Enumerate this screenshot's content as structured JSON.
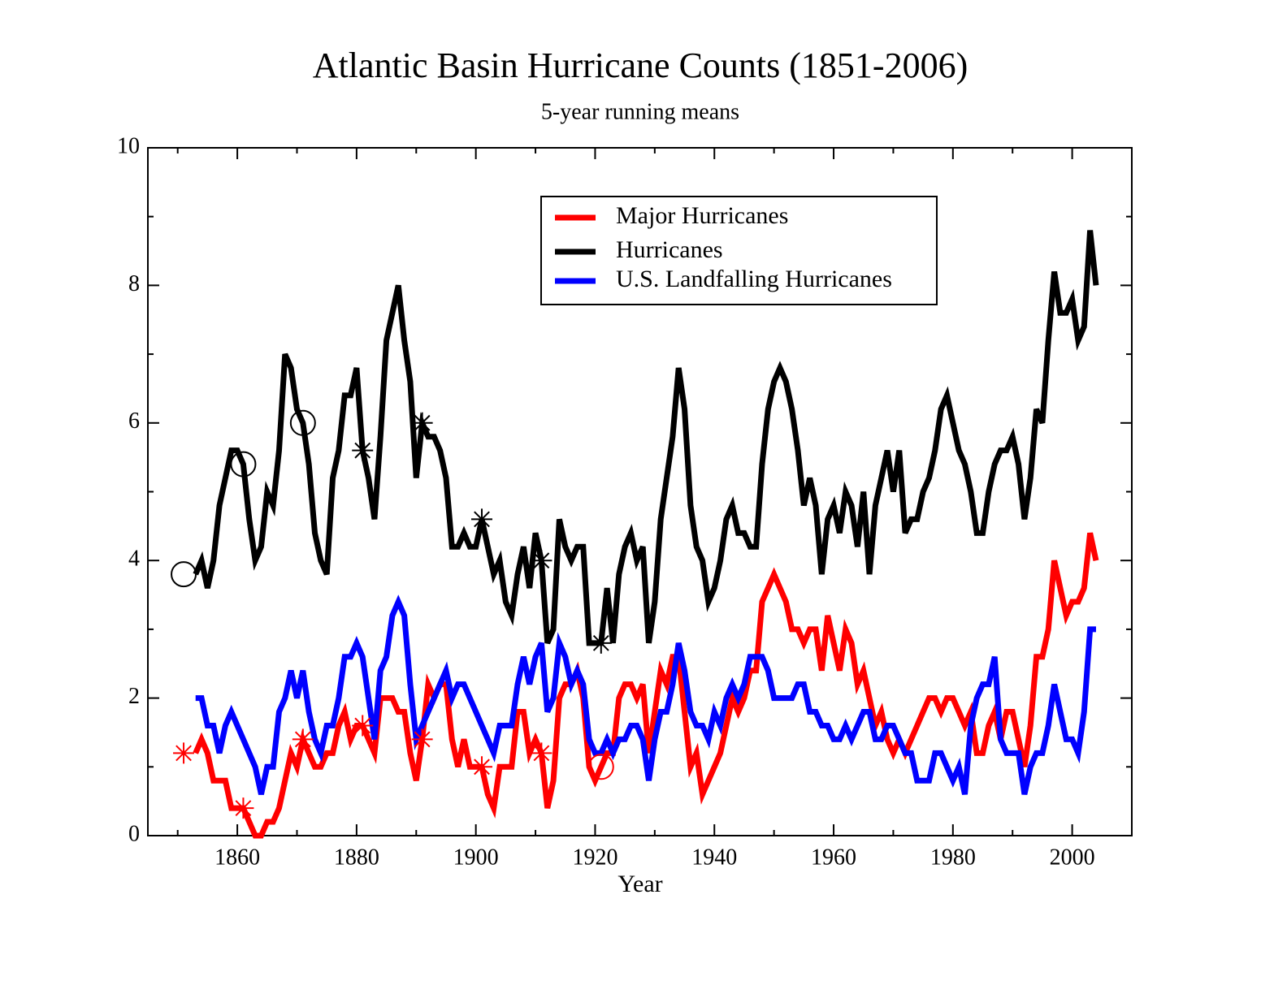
{
  "chart_data": {
    "type": "line",
    "title": "Atlantic Basin Hurricane Counts (1851-2006)",
    "subtitle": "5-year running means",
    "xlabel": "Year",
    "xlim": [
      1845,
      2010
    ],
    "xticks": [
      1860,
      1880,
      1900,
      1920,
      1940,
      1960,
      1980,
      2000
    ],
    "xminorticks": [
      1850,
      1870,
      1890,
      1910,
      1930,
      1950,
      1970,
      1990,
      2010
    ],
    "ylim": [
      0,
      10
    ],
    "yticks": [
      0,
      2,
      4,
      6,
      8,
      10
    ],
    "yminorticks": [
      1,
      3,
      5,
      7,
      9
    ],
    "x": [
      1853,
      1854,
      1855,
      1856,
      1857,
      1858,
      1859,
      1860,
      1861,
      1862,
      1863,
      1864,
      1865,
      1866,
      1867,
      1868,
      1869,
      1870,
      1871,
      1872,
      1873,
      1874,
      1875,
      1876,
      1877,
      1878,
      1879,
      1880,
      1881,
      1882,
      1883,
      1884,
      1885,
      1886,
      1887,
      1888,
      1889,
      1890,
      1891,
      1892,
      1893,
      1894,
      1895,
      1896,
      1897,
      1898,
      1899,
      1900,
      1901,
      1902,
      1903,
      1904,
      1905,
      1906,
      1907,
      1908,
      1909,
      1910,
      1911,
      1912,
      1913,
      1914,
      1915,
      1916,
      1917,
      1918,
      1919,
      1920,
      1921,
      1922,
      1923,
      1924,
      1925,
      1926,
      1927,
      1928,
      1929,
      1930,
      1931,
      1932,
      1933,
      1934,
      1935,
      1936,
      1937,
      1938,
      1939,
      1940,
      1941,
      1942,
      1943,
      1944,
      1945,
      1946,
      1947,
      1948,
      1949,
      1950,
      1951,
      1952,
      1953,
      1954,
      1955,
      1956,
      1957,
      1958,
      1959,
      1960,
      1961,
      1962,
      1963,
      1964,
      1965,
      1966,
      1967,
      1968,
      1969,
      1970,
      1971,
      1972,
      1973,
      1974,
      1975,
      1976,
      1977,
      1978,
      1979,
      1980,
      1981,
      1982,
      1983,
      1984,
      1985,
      1986,
      1987,
      1988,
      1989,
      1990,
      1991,
      1992,
      1993,
      1994,
      1995,
      1996,
      1997,
      1998,
      1999,
      2000,
      2001,
      2002,
      2003,
      2004
    ],
    "series": [
      {
        "name": "Major Hurricanes",
        "color": "#ff0000",
        "values": [
          1.2,
          1.4,
          1.2,
          0.8,
          0.8,
          0.8,
          0.4,
          0.4,
          0.4,
          0.2,
          0.0,
          0.0,
          0.2,
          0.2,
          0.4,
          0.8,
          1.2,
          1.0,
          1.4,
          1.2,
          1.0,
          1.0,
          1.2,
          1.2,
          1.6,
          1.8,
          1.4,
          1.6,
          1.6,
          1.4,
          1.2,
          2.0,
          2.0,
          2.0,
          1.8,
          1.8,
          1.2,
          0.8,
          1.4,
          2.2,
          2.0,
          2.2,
          2.2,
          1.4,
          1.0,
          1.4,
          1.0,
          1.0,
          1.0,
          0.6,
          0.4,
          1.0,
          1.0,
          1.0,
          1.8,
          1.8,
          1.2,
          1.4,
          1.2,
          0.4,
          0.8,
          2.0,
          2.2,
          2.2,
          2.4,
          2.0,
          1.0,
          0.8,
          1.0,
          1.2,
          1.2,
          2.0,
          2.2,
          2.2,
          2.0,
          2.2,
          1.2,
          1.8,
          2.4,
          2.2,
          2.6,
          2.6,
          1.8,
          1.0,
          1.2,
          0.6,
          0.8,
          1.0,
          1.2,
          1.6,
          2.0,
          1.8,
          2.0,
          2.4,
          2.4,
          3.4,
          3.6,
          3.8,
          3.6,
          3.4,
          3.0,
          3.0,
          2.8,
          3.0,
          3.0,
          2.4,
          3.2,
          2.8,
          2.4,
          3.0,
          2.8,
          2.2,
          2.4,
          2.0,
          1.6,
          1.8,
          1.4,
          1.2,
          1.4,
          1.2,
          1.4,
          1.6,
          1.8,
          2.0,
          2.0,
          1.8,
          2.0,
          2.0,
          1.8,
          1.6,
          1.8,
          1.2,
          1.2,
          1.6,
          1.8,
          1.4,
          1.8,
          1.8,
          1.4,
          1.0,
          1.6,
          2.6,
          2.6,
          3.0,
          4.0,
          3.6,
          3.2,
          3.4,
          3.4,
          3.6,
          4.4,
          4.0
        ]
      },
      {
        "name": "Hurricanes",
        "color": "#000000",
        "values": [
          3.8,
          4.0,
          3.6,
          4.0,
          4.8,
          5.2,
          5.6,
          5.6,
          5.4,
          4.6,
          4.0,
          4.2,
          5.0,
          4.8,
          5.6,
          7.0,
          6.8,
          6.2,
          6.0,
          5.4,
          4.4,
          4.0,
          3.8,
          5.2,
          5.6,
          6.4,
          6.4,
          6.8,
          5.6,
          5.2,
          4.6,
          5.8,
          7.2,
          7.6,
          8.0,
          7.2,
          6.6,
          5.2,
          6.0,
          5.8,
          5.8,
          5.6,
          5.2,
          4.2,
          4.2,
          4.4,
          4.2,
          4.2,
          4.6,
          4.2,
          3.8,
          4.0,
          3.4,
          3.2,
          3.8,
          4.2,
          3.6,
          4.4,
          4.0,
          2.8,
          3.0,
          4.6,
          4.2,
          4.0,
          4.2,
          4.2,
          2.8,
          2.8,
          2.8,
          3.6,
          2.8,
          3.8,
          4.2,
          4.4,
          4.0,
          4.2,
          2.8,
          3.4,
          4.6,
          5.2,
          5.8,
          6.8,
          6.2,
          4.8,
          4.2,
          4.0,
          3.4,
          3.6,
          4.0,
          4.6,
          4.8,
          4.4,
          4.4,
          4.2,
          4.2,
          5.4,
          6.2,
          6.6,
          6.8,
          6.6,
          6.2,
          5.6,
          4.8,
          5.2,
          4.8,
          3.8,
          4.6,
          4.8,
          4.4,
          5.0,
          4.8,
          4.2,
          5.0,
          3.8,
          4.8,
          5.2,
          5.6,
          5.0,
          5.6,
          4.4,
          4.6,
          4.6,
          5.0,
          5.2,
          5.6,
          6.2,
          6.4,
          6.0,
          5.6,
          5.4,
          5.0,
          4.4,
          4.4,
          5.0,
          5.4,
          5.6,
          5.6,
          5.8,
          5.4,
          4.6,
          5.2,
          6.2,
          6.0,
          7.2,
          8.2,
          7.6,
          7.6,
          7.8,
          7.2,
          7.4,
          8.8,
          8.0
        ]
      },
      {
        "name": "U.S. Landfalling Hurricanes",
        "color": "#0000ff",
        "values": [
          2.0,
          2.0,
          1.6,
          1.6,
          1.2,
          1.6,
          1.8,
          1.6,
          1.4,
          1.2,
          1.0,
          0.6,
          1.0,
          1.0,
          1.8,
          2.0,
          2.4,
          2.0,
          2.4,
          1.8,
          1.4,
          1.2,
          1.6,
          1.6,
          2.0,
          2.6,
          2.6,
          2.8,
          2.6,
          2.0,
          1.4,
          2.4,
          2.6,
          3.2,
          3.4,
          3.2,
          2.2,
          1.4,
          1.6,
          1.8,
          2.0,
          2.2,
          2.4,
          2.0,
          2.2,
          2.2,
          2.0,
          1.8,
          1.6,
          1.4,
          1.2,
          1.6,
          1.6,
          1.6,
          2.2,
          2.6,
          2.2,
          2.6,
          2.8,
          1.8,
          2.0,
          2.8,
          2.6,
          2.2,
          2.4,
          2.2,
          1.4,
          1.2,
          1.2,
          1.4,
          1.2,
          1.4,
          1.4,
          1.6,
          1.6,
          1.4,
          0.8,
          1.4,
          1.8,
          1.8,
          2.2,
          2.8,
          2.4,
          1.8,
          1.6,
          1.6,
          1.4,
          1.8,
          1.6,
          2.0,
          2.2,
          2.0,
          2.2,
          2.6,
          2.6,
          2.6,
          2.4,
          2.0,
          2.0,
          2.0,
          2.0,
          2.2,
          2.2,
          1.8,
          1.8,
          1.6,
          1.6,
          1.4,
          1.4,
          1.6,
          1.4,
          1.6,
          1.8,
          1.8,
          1.4,
          1.4,
          1.6,
          1.6,
          1.4,
          1.2,
          1.2,
          0.8,
          0.8,
          0.8,
          1.2,
          1.2,
          1.0,
          0.8,
          1.0,
          0.6,
          1.6,
          2.0,
          2.2,
          2.2,
          2.6,
          1.4,
          1.2,
          1.2,
          1.2,
          0.6,
          1.0,
          1.2,
          1.2,
          1.6,
          2.2,
          1.8,
          1.4,
          1.4,
          1.2,
          1.8,
          3.0,
          3.0
        ]
      }
    ],
    "points": [
      {
        "x": 1851,
        "y": 3.8,
        "symbol": "circle",
        "color": "#000000"
      },
      {
        "x": 1861,
        "y": 5.4,
        "symbol": "circle",
        "color": "#000000"
      },
      {
        "x": 1871,
        "y": 6.0,
        "symbol": "circle",
        "color": "#000000"
      },
      {
        "x": 1881,
        "y": 5.6,
        "symbol": "star",
        "color": "#000000"
      },
      {
        "x": 1891,
        "y": 6.0,
        "symbol": "star",
        "color": "#000000"
      },
      {
        "x": 1901,
        "y": 4.6,
        "symbol": "star",
        "color": "#000000"
      },
      {
        "x": 1911,
        "y": 4.0,
        "symbol": "star",
        "color": "#000000"
      },
      {
        "x": 1921,
        "y": 2.8,
        "symbol": "star",
        "color": "#000000"
      },
      {
        "x": 1851,
        "y": 1.2,
        "symbol": "star",
        "color": "#ff0000"
      },
      {
        "x": 1861,
        "y": 0.4,
        "symbol": "star",
        "color": "#ff0000"
      },
      {
        "x": 1871,
        "y": 1.4,
        "symbol": "star",
        "color": "#ff0000"
      },
      {
        "x": 1881,
        "y": 1.6,
        "symbol": "star",
        "color": "#ff0000"
      },
      {
        "x": 1891,
        "y": 1.4,
        "symbol": "star",
        "color": "#ff0000"
      },
      {
        "x": 1901,
        "y": 1.0,
        "symbol": "star",
        "color": "#ff0000"
      },
      {
        "x": 1911,
        "y": 1.2,
        "symbol": "star",
        "color": "#ff0000"
      },
      {
        "x": 1921,
        "y": 1.0,
        "symbol": "circle",
        "color": "#ff0000"
      }
    ]
  }
}
